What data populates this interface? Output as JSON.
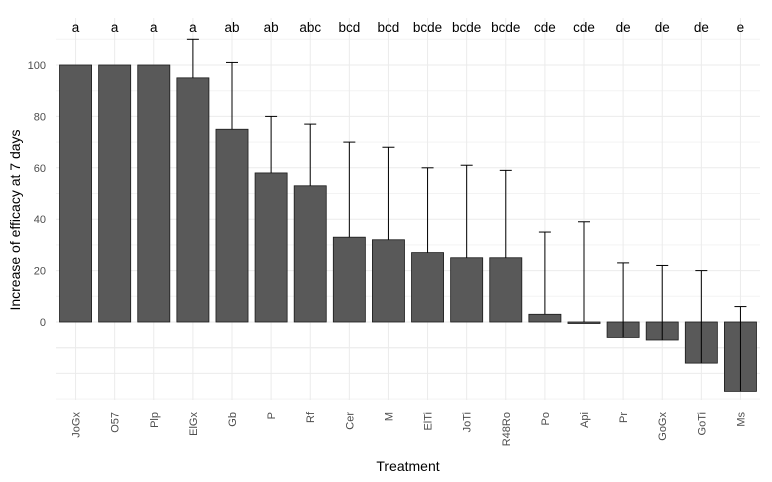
{
  "chart_data": {
    "type": "bar",
    "xlabel": "Treatment",
    "ylabel": "Increase of efficacy at 7 days",
    "categories": [
      "JoGx",
      "O57",
      "Plp",
      "ElGx",
      "Gb",
      "P",
      "Rf",
      "Cer",
      "M",
      "ElTi",
      "JoTi",
      "R48Ro",
      "Po",
      "Api",
      "Pr",
      "GoGx",
      "GoTi",
      "Ms"
    ],
    "values": [
      100,
      100,
      100,
      95,
      75,
      58,
      53,
      33,
      32,
      27,
      25,
      25,
      3,
      0,
      -6,
      -7,
      -16,
      -27
    ],
    "error_upper": [
      null,
      null,
      null,
      110,
      101,
      80,
      77,
      70,
      68,
      60,
      61,
      59,
      35,
      39,
      23,
      22,
      20,
      6
    ],
    "significance_letters": [
      "a",
      "a",
      "a",
      "a",
      "ab",
      "ab",
      "abc",
      "bcd",
      "bcd",
      "bcde",
      "bcde",
      "bcde",
      "cde",
      "cde",
      "de",
      "de",
      "de",
      "e"
    ],
    "yticks": [
      0,
      20,
      40,
      60,
      80,
      100
    ],
    "ylim": [
      -35,
      115
    ],
    "grid": true
  }
}
